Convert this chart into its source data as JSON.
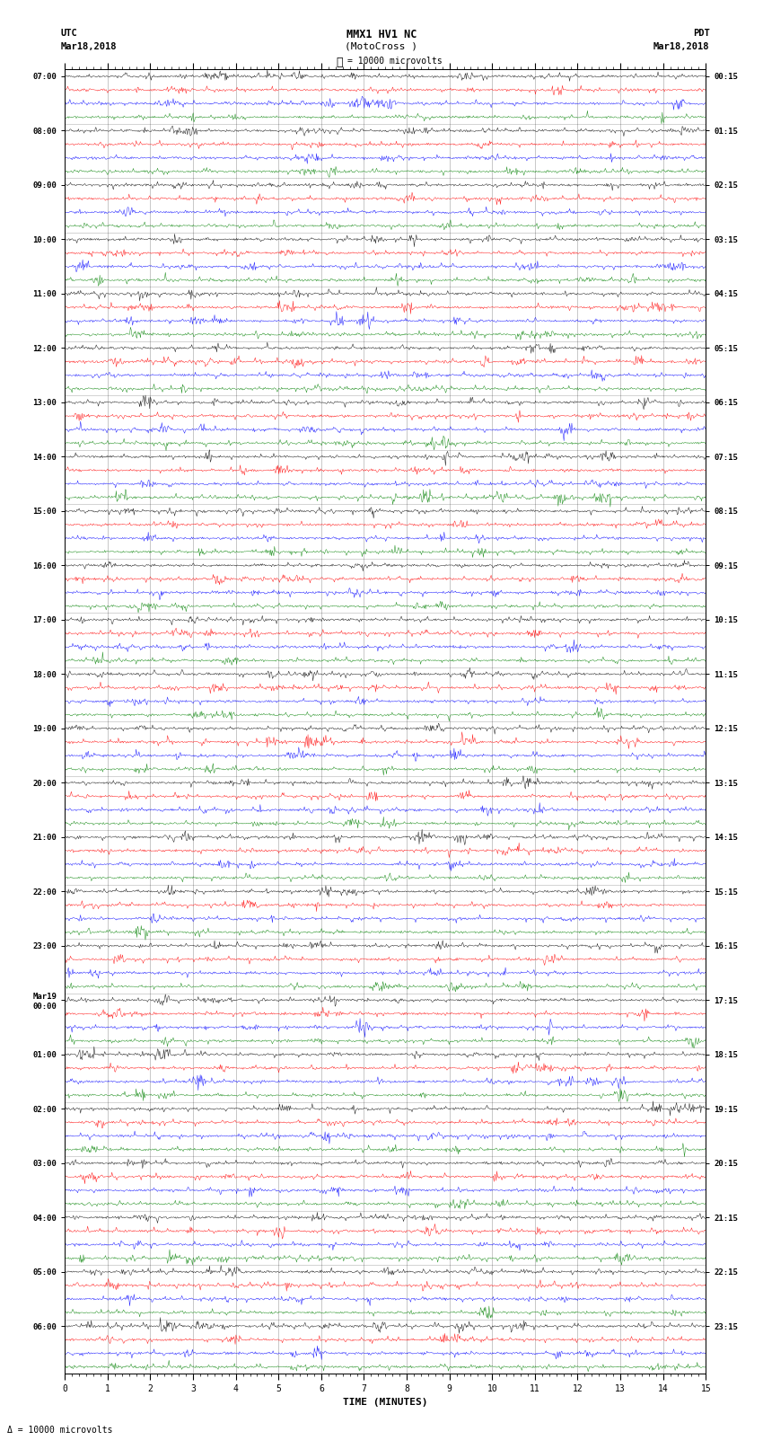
{
  "title_line1": "MMX1 HV1 NC",
  "title_line2": "(MotoCross )",
  "label_left_top": "UTC",
  "label_left_date": "Mar18,2018",
  "label_right_top": "PDT",
  "label_right_date": "Mar18,2018",
  "scale_label": "= 10000 microvolts",
  "xlabel": "TIME (MINUTES)",
  "bottom_note": "= 10000 microvolts",
  "utc_times": [
    "07:00",
    "08:00",
    "09:00",
    "10:00",
    "11:00",
    "12:00",
    "13:00",
    "14:00",
    "15:00",
    "16:00",
    "17:00",
    "18:00",
    "19:00",
    "20:00",
    "21:00",
    "22:00",
    "23:00",
    "Mar19\n00:00",
    "01:00",
    "02:00",
    "03:00",
    "04:00",
    "05:00",
    "06:00"
  ],
  "pdt_times": [
    "00:15",
    "01:15",
    "02:15",
    "03:15",
    "04:15",
    "05:15",
    "06:15",
    "07:15",
    "08:15",
    "09:15",
    "10:15",
    "11:15",
    "12:15",
    "13:15",
    "14:15",
    "15:15",
    "16:15",
    "17:15",
    "18:15",
    "19:15",
    "20:15",
    "21:15",
    "22:15",
    "23:15"
  ],
  "trace_colors": [
    "black",
    "red",
    "blue",
    "green"
  ],
  "n_rows": 24,
  "traces_per_row": 4,
  "x_min": 0,
  "x_max": 15,
  "x_ticks": [
    0,
    1,
    2,
    3,
    4,
    5,
    6,
    7,
    8,
    9,
    10,
    11,
    12,
    13,
    14,
    15
  ],
  "bg_color": "white",
  "fig_width": 8.5,
  "fig_height": 16.13
}
